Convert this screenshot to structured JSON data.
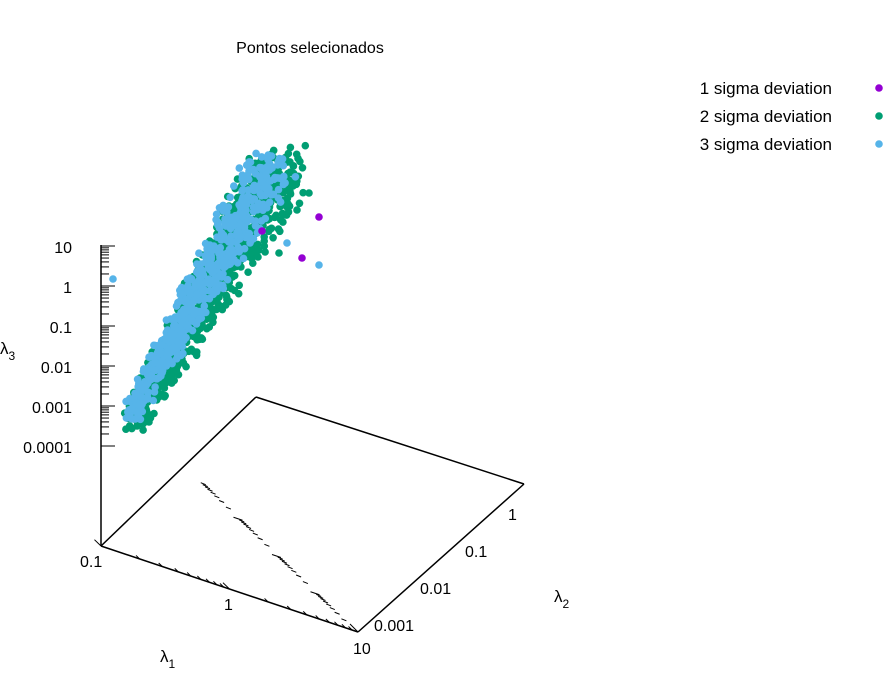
{
  "chart_data": {
    "type": "scatter",
    "projection": "3d",
    "title": "Pontos selecionados",
    "axes": {
      "x": {
        "label": "λ",
        "subscript": "1",
        "scale": "log",
        "range": [
          0.1,
          10
        ],
        "ticks": [
          "0.1",
          "1",
          "10"
        ]
      },
      "y": {
        "label": "λ",
        "subscript": "2",
        "scale": "log",
        "range": [
          0.0001,
          1
        ],
        "ticks": [
          "0.001",
          "0.01",
          "0.1",
          "1"
        ]
      },
      "z": {
        "label": "λ",
        "subscript": "3",
        "scale": "log",
        "range": [
          0.0001,
          10
        ],
        "ticks": [
          "10",
          "1",
          "0.1",
          "0.01",
          "0.001",
          "0.0001"
        ]
      }
    },
    "legend": {
      "position": "top-right"
    },
    "series": [
      {
        "name": "1 sigma deviation",
        "color": "#9400d3",
        "points": [
          [
            9.0,
            0.3,
            12.0
          ],
          [
            6.8,
            0.3,
            2.6
          ]
        ]
      },
      {
        "name": "2 sigma deviation",
        "color": "#009e73",
        "points": "dense band of points along λ3 ≈ λ1·λ2, λ1 ≈ 0.9–9, λ3 ≈ 0.0002–30"
      },
      {
        "name": "3 sigma deviation",
        "color": "#56b4e9",
        "points": [
          [
            0.5,
            0.5,
            1.5
          ],
          [
            9.0,
            0.2,
            1.2
          ]
        ]
      }
    ]
  }
}
